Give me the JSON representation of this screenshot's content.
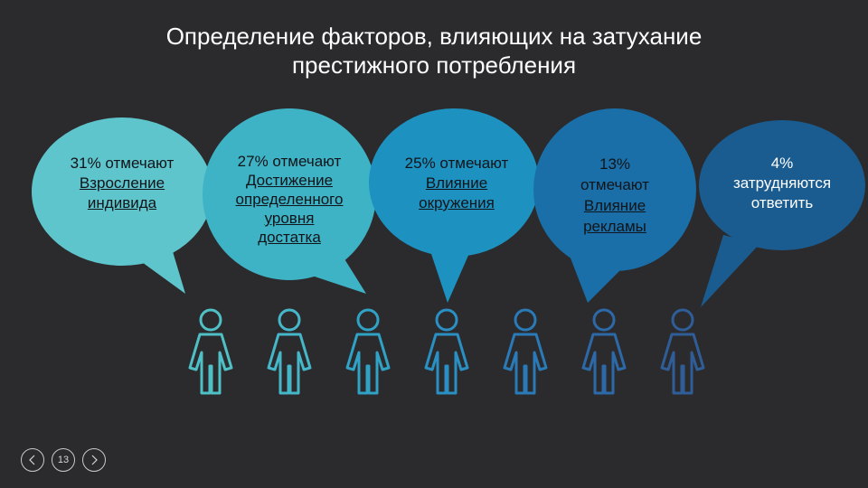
{
  "slide": {
    "title_line1": "Определение факторов, влияющих на затухание",
    "title_line2": "престижного потребления"
  },
  "bubbles": [
    {
      "lines": [
        "31% отмечают"
      ],
      "ulines": [
        "Взросление",
        "индивида"
      ],
      "color": "#5fc5cc"
    },
    {
      "lines": [
        "27% отмечают"
      ],
      "ulines": [
        "Достижение",
        "определенного",
        "уровня",
        "достатка"
      ],
      "color": "#3fb3c6"
    },
    {
      "lines": [
        "25% отмечают"
      ],
      "ulines": [
        "Влияние",
        "окружения"
      ],
      "color": "#1d92c0"
    },
    {
      "lines": [
        "13%",
        "отмечают"
      ],
      "ulines": [
        "Влияние",
        "рекламы"
      ],
      "color": "#1a6fa8"
    },
    {
      "lines": [
        "4%",
        "затрудняются",
        "ответить"
      ],
      "ulines": [],
      "color": "#1a5c90"
    }
  ],
  "people": {
    "colors": [
      "#4fc0c6",
      "#45b7c8",
      "#2fa2c5",
      "#2a90c4",
      "#2a7ab8",
      "#2d69a8",
      "#2f5d98"
    ]
  },
  "nav": {
    "prev_icon": "chevron-left-icon",
    "page_number": "13",
    "next_icon": "chevron-right-icon"
  }
}
